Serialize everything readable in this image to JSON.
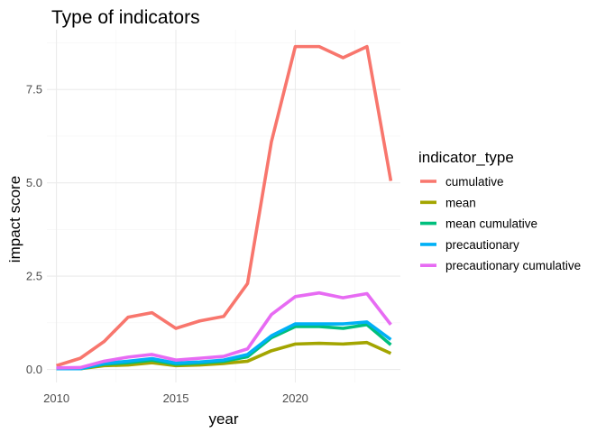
{
  "chart_data": {
    "type": "line",
    "title": "Type of indicators",
    "xlabel": "year",
    "ylabel": "impact score",
    "xlim": [
      2009.6,
      2024.4
    ],
    "ylim": [
      -0.35,
      9.1
    ],
    "x_ticks": [
      2010,
      2015,
      2020
    ],
    "x_tick_labels": [
      "2010",
      "2015",
      "2020"
    ],
    "y_ticks": [
      0,
      2.5,
      5,
      7.5
    ],
    "y_tick_labels": [
      "0.0",
      "2.5",
      "5.0",
      "7.5"
    ],
    "grid": true,
    "legend": {
      "title": "indicator_type",
      "position": "right"
    },
    "x": [
      2010,
      2011,
      2012,
      2013,
      2014,
      2015,
      2016,
      2017,
      2018,
      2019,
      2020,
      2021,
      2022,
      2023,
      2024
    ],
    "series": [
      {
        "name": "cumulative",
        "color": "#F8766D",
        "values": [
          0.1,
          0.3,
          0.75,
          1.4,
          1.52,
          1.1,
          1.3,
          1.42,
          2.3,
          6.1,
          8.65,
          8.65,
          8.35,
          8.65,
          5.05
        ]
      },
      {
        "name": "mean",
        "color": "#A3A500",
        "values": [
          0.02,
          0.02,
          0.1,
          0.12,
          0.18,
          0.1,
          0.12,
          0.16,
          0.22,
          0.5,
          0.68,
          0.7,
          0.68,
          0.72,
          0.43
        ]
      },
      {
        "name": "mean cumulative",
        "color": "#00BF7D",
        "values": [
          0.02,
          0.02,
          0.14,
          0.18,
          0.25,
          0.14,
          0.17,
          0.22,
          0.34,
          0.85,
          1.15,
          1.15,
          1.1,
          1.2,
          0.66
        ]
      },
      {
        "name": "precautionary",
        "color": "#00B0F6",
        "values": [
          0.02,
          0.02,
          0.16,
          0.22,
          0.29,
          0.17,
          0.2,
          0.25,
          0.4,
          0.9,
          1.22,
          1.22,
          1.22,
          1.27,
          0.8
        ]
      },
      {
        "name": "precautionary cumulative",
        "color": "#E76BF3",
        "values": [
          0.04,
          0.05,
          0.22,
          0.33,
          0.4,
          0.25,
          0.3,
          0.35,
          0.55,
          1.47,
          1.95,
          2.05,
          1.92,
          2.03,
          1.2
        ]
      }
    ]
  }
}
